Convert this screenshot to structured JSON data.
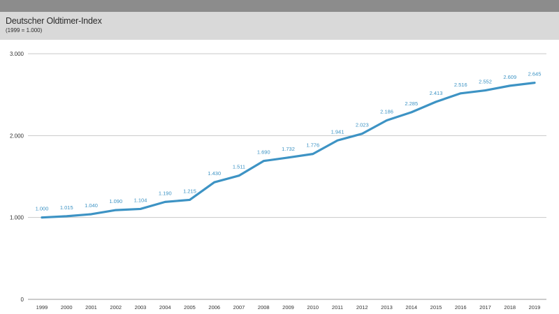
{
  "chart_data": {
    "type": "line",
    "title": "Deutscher Oldtimer-Index",
    "subtitle": "(1999 = 1.000)",
    "xlabel": "",
    "ylabel": "",
    "ylim": [
      0,
      3000
    ],
    "yticks": [
      0,
      1000,
      2000,
      3000
    ],
    "ytick_labels": [
      "0",
      "1.000",
      "2.000",
      "3.000"
    ],
    "grid": true,
    "legend": "none",
    "categories": [
      "1999",
      "2000",
      "2001",
      "2002",
      "2003",
      "2004",
      "2005",
      "2006",
      "2007",
      "2008",
      "2009",
      "2010",
      "2011",
      "2012",
      "2013",
      "2014",
      "2015",
      "2016",
      "2017",
      "2018",
      "2019"
    ],
    "series": [
      {
        "values": [
          1000,
          1015,
          1040,
          1090,
          1104,
          1190,
          1215,
          1430,
          1511,
          1690,
          1732,
          1776,
          1941,
          2023,
          2186,
          2285,
          2413,
          2516,
          2552,
          2609,
          2645
        ],
        "labels": [
          "1.000",
          "1.015",
          "1.040",
          "1.090",
          "1.104",
          "1.190",
          "1.215",
          "1.430",
          "1.511",
          "1.690",
          "1.732",
          "1.776",
          "1.941",
          "2.023",
          "2.186",
          "2.285",
          "2.413",
          "2.516",
          "2.552",
          "2.609",
          "2.645"
        ],
        "color": "#3d93c4"
      }
    ]
  }
}
